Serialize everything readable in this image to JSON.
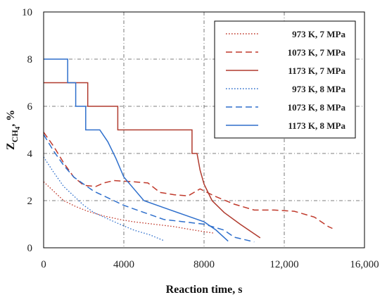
{
  "chart_data": {
    "type": "line",
    "xlabel": "Reaction time, s",
    "ylabel": "Z",
    "ylabel_subscript": "CH",
    "ylabel_sub_subscript": "4",
    "ylabel_unit": ", %",
    "xlim": [
      0,
      16000
    ],
    "ylim": [
      0,
      10
    ],
    "xticks": [
      0,
      4000,
      8000,
      12000,
      16000
    ],
    "xtick_labels": [
      "0",
      "4000",
      "8000",
      "12,000",
      "16,000"
    ],
    "yticks": [
      0,
      2,
      4,
      6,
      8,
      10
    ],
    "ytick_labels": [
      "0",
      "2",
      "4",
      "6",
      "8",
      "10"
    ],
    "grid": true,
    "legend_position": "top-right",
    "series": [
      {
        "name": "973 K, 7 MPa",
        "color": "#c0392b",
        "dash": "dotted",
        "points": [
          [
            0,
            2.8
          ],
          [
            500,
            2.4
          ],
          [
            1000,
            2.0
          ],
          [
            1600,
            1.75
          ],
          [
            2200,
            1.55
          ],
          [
            3000,
            1.35
          ],
          [
            3800,
            1.2
          ],
          [
            4500,
            1.1
          ],
          [
            5500,
            1.0
          ],
          [
            6500,
            0.9
          ],
          [
            7500,
            0.75
          ],
          [
            8500,
            0.62
          ]
        ]
      },
      {
        "name": "1073 K, 7 MPa",
        "color": "#c0392b",
        "dash": "dashed",
        "points": [
          [
            0,
            4.9
          ],
          [
            500,
            4.3
          ],
          [
            1000,
            3.6
          ],
          [
            1500,
            3.0
          ],
          [
            2000,
            2.65
          ],
          [
            2600,
            2.6
          ],
          [
            3000,
            2.75
          ],
          [
            3500,
            2.85
          ],
          [
            4500,
            2.8
          ],
          [
            5200,
            2.75
          ],
          [
            5800,
            2.35
          ],
          [
            6500,
            2.25
          ],
          [
            7200,
            2.2
          ],
          [
            7800,
            2.5
          ],
          [
            8500,
            2.2
          ],
          [
            9500,
            1.85
          ],
          [
            10500,
            1.6
          ],
          [
            11500,
            1.6
          ],
          [
            12500,
            1.55
          ],
          [
            13500,
            1.3
          ],
          [
            14200,
            0.9
          ],
          [
            14400,
            0.82
          ]
        ]
      },
      {
        "name": "1173 K, 7 MPa",
        "color": "#b03a2e",
        "dash": "solid",
        "points": [
          [
            0,
            7.0
          ],
          [
            2200,
            7.0
          ],
          [
            2200,
            6.0
          ],
          [
            3700,
            6.0
          ],
          [
            3700,
            5.0
          ],
          [
            7400,
            5.0
          ],
          [
            7400,
            4.0
          ],
          [
            7650,
            4.0
          ],
          [
            7800,
            3.3
          ],
          [
            8000,
            2.7
          ],
          [
            8400,
            2.0
          ],
          [
            9000,
            1.5
          ],
          [
            9800,
            1.0
          ],
          [
            10800,
            0.42
          ]
        ]
      },
      {
        "name": "973 K, 8 MPa",
        "color": "#2e6fcc",
        "dash": "dotted",
        "points": [
          [
            0,
            3.85
          ],
          [
            500,
            3.2
          ],
          [
            1000,
            2.6
          ],
          [
            1500,
            2.2
          ],
          [
            2000,
            1.8
          ],
          [
            2500,
            1.5
          ],
          [
            3000,
            1.3
          ],
          [
            3800,
            1.0
          ],
          [
            4500,
            0.75
          ],
          [
            5300,
            0.55
          ],
          [
            6000,
            0.3
          ]
        ]
      },
      {
        "name": "1073 K, 8 MPa",
        "color": "#2e6fcc",
        "dash": "dashed",
        "points": [
          [
            0,
            4.8
          ],
          [
            500,
            4.1
          ],
          [
            1000,
            3.5
          ],
          [
            1500,
            3.0
          ],
          [
            2000,
            2.7
          ],
          [
            2500,
            2.4
          ],
          [
            3000,
            2.2
          ],
          [
            3500,
            2.0
          ],
          [
            4000,
            1.8
          ],
          [
            5000,
            1.5
          ],
          [
            6000,
            1.2
          ],
          [
            7000,
            1.1
          ],
          [
            8000,
            1.0
          ],
          [
            9000,
            0.75
          ],
          [
            9500,
            0.45
          ],
          [
            10500,
            0.25
          ]
        ]
      },
      {
        "name": "1173 K, 8 MPa",
        "color": "#2e6fcc",
        "dash": "solid",
        "points": [
          [
            0,
            8.0
          ],
          [
            1200,
            8.0
          ],
          [
            1200,
            7.0
          ],
          [
            1600,
            7.0
          ],
          [
            1600,
            6.0
          ],
          [
            2100,
            6.0
          ],
          [
            2100,
            5.0
          ],
          [
            2800,
            5.0
          ],
          [
            3200,
            4.5
          ],
          [
            3600,
            3.8
          ],
          [
            4000,
            3.0
          ],
          [
            4500,
            2.5
          ],
          [
            5000,
            2.0
          ],
          [
            6000,
            1.7
          ],
          [
            7000,
            1.4
          ],
          [
            8000,
            1.1
          ],
          [
            8600,
            0.75
          ],
          [
            9200,
            0.28
          ]
        ]
      }
    ]
  }
}
